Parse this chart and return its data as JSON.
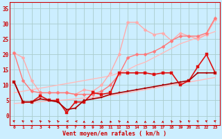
{
  "background_color": "#cceeff",
  "grid_color": "#aacccc",
  "xlabel": "Vent moyen/en rafales ( km/h )",
  "ylim": [
    -3,
    37
  ],
  "yticks": [
    0,
    5,
    10,
    15,
    20,
    25,
    30,
    35
  ],
  "xlim": [
    -0.5,
    23.5
  ],
  "series": [
    {
      "color": "#ffbbbb",
      "linewidth": 1.0,
      "marker": null,
      "data": [
        7.5,
        8.0,
        8.5,
        9.0,
        9.5,
        10.0,
        10.5,
        11.0,
        11.5,
        12.0,
        12.5,
        13.0,
        14.0,
        15.0,
        16.5,
        17.5,
        19.0,
        20.5,
        22.0,
        23.5,
        24.5,
        25.5,
        26.5,
        27.5
      ]
    },
    {
      "color": "#ffbbbb",
      "linewidth": 1.0,
      "marker": null,
      "data": [
        4.0,
        4.2,
        4.4,
        4.6,
        4.8,
        5.0,
        5.2,
        5.5,
        5.8,
        6.0,
        6.3,
        6.6,
        7.0,
        7.5,
        8.0,
        8.5,
        9.0,
        9.5,
        10.0,
        10.5,
        11.0,
        11.5,
        12.0,
        12.5
      ]
    },
    {
      "color": "#ffaaaa",
      "linewidth": 1.0,
      "marker": "D",
      "markersize": 2.5,
      "data": [
        20.5,
        19.0,
        11.5,
        7.5,
        7.5,
        7.5,
        7.5,
        7.0,
        8.5,
        8.0,
        10.0,
        14.0,
        20.0,
        30.5,
        30.5,
        28.0,
        26.5,
        27.0,
        24.5,
        27.0,
        26.0,
        25.0,
        26.5,
        31.5
      ]
    },
    {
      "color": "#ff7777",
      "linewidth": 1.0,
      "marker": "D",
      "markersize": 2.5,
      "data": [
        20.5,
        11.5,
        8.0,
        7.5,
        7.5,
        7.5,
        7.5,
        7.0,
        7.0,
        7.0,
        8.0,
        10.0,
        13.5,
        19.0,
        20.0,
        20.0,
        21.0,
        22.5,
        24.5,
        26.0,
        26.0,
        26.0,
        27.0,
        32.0
      ]
    },
    {
      "color": "#dd1111",
      "linewidth": 1.2,
      "marker": "s",
      "markersize": 2.5,
      "data": [
        11.0,
        4.5,
        4.5,
        6.5,
        5.0,
        5.0,
        1.0,
        4.5,
        4.5,
        7.5,
        7.0,
        7.5,
        14.0,
        14.0,
        14.0,
        14.0,
        13.5,
        14.0,
        14.0,
        10.0,
        11.5,
        16.0,
        20.0,
        14.0
      ]
    },
    {
      "color": "#aa0000",
      "linewidth": 1.2,
      "marker": "s",
      "markersize": 2.0,
      "data": [
        11.0,
        4.5,
        4.5,
        5.5,
        5.0,
        4.5,
        2.0,
        2.5,
        5.0,
        5.5,
        6.0,
        7.0,
        7.5,
        8.0,
        8.5,
        9.0,
        9.5,
        10.0,
        10.5,
        11.0,
        11.5,
        14.0,
        14.0,
        14.0
      ]
    }
  ],
  "arrow_angles_deg": [
    225,
    210,
    210,
    205,
    200,
    200,
    270,
    260,
    180,
    180,
    180,
    190,
    200,
    180,
    180,
    180,
    180,
    180,
    195,
    195,
    210,
    210,
    220,
    225
  ],
  "x_labels": [
    "0",
    "1",
    "2",
    "3",
    "4",
    "5",
    "6",
    "7",
    "8",
    "9",
    "10",
    "11",
    "12",
    "13",
    "14",
    "15",
    "16",
    "17",
    "18",
    "19",
    "20",
    "21",
    "22",
    "23"
  ]
}
